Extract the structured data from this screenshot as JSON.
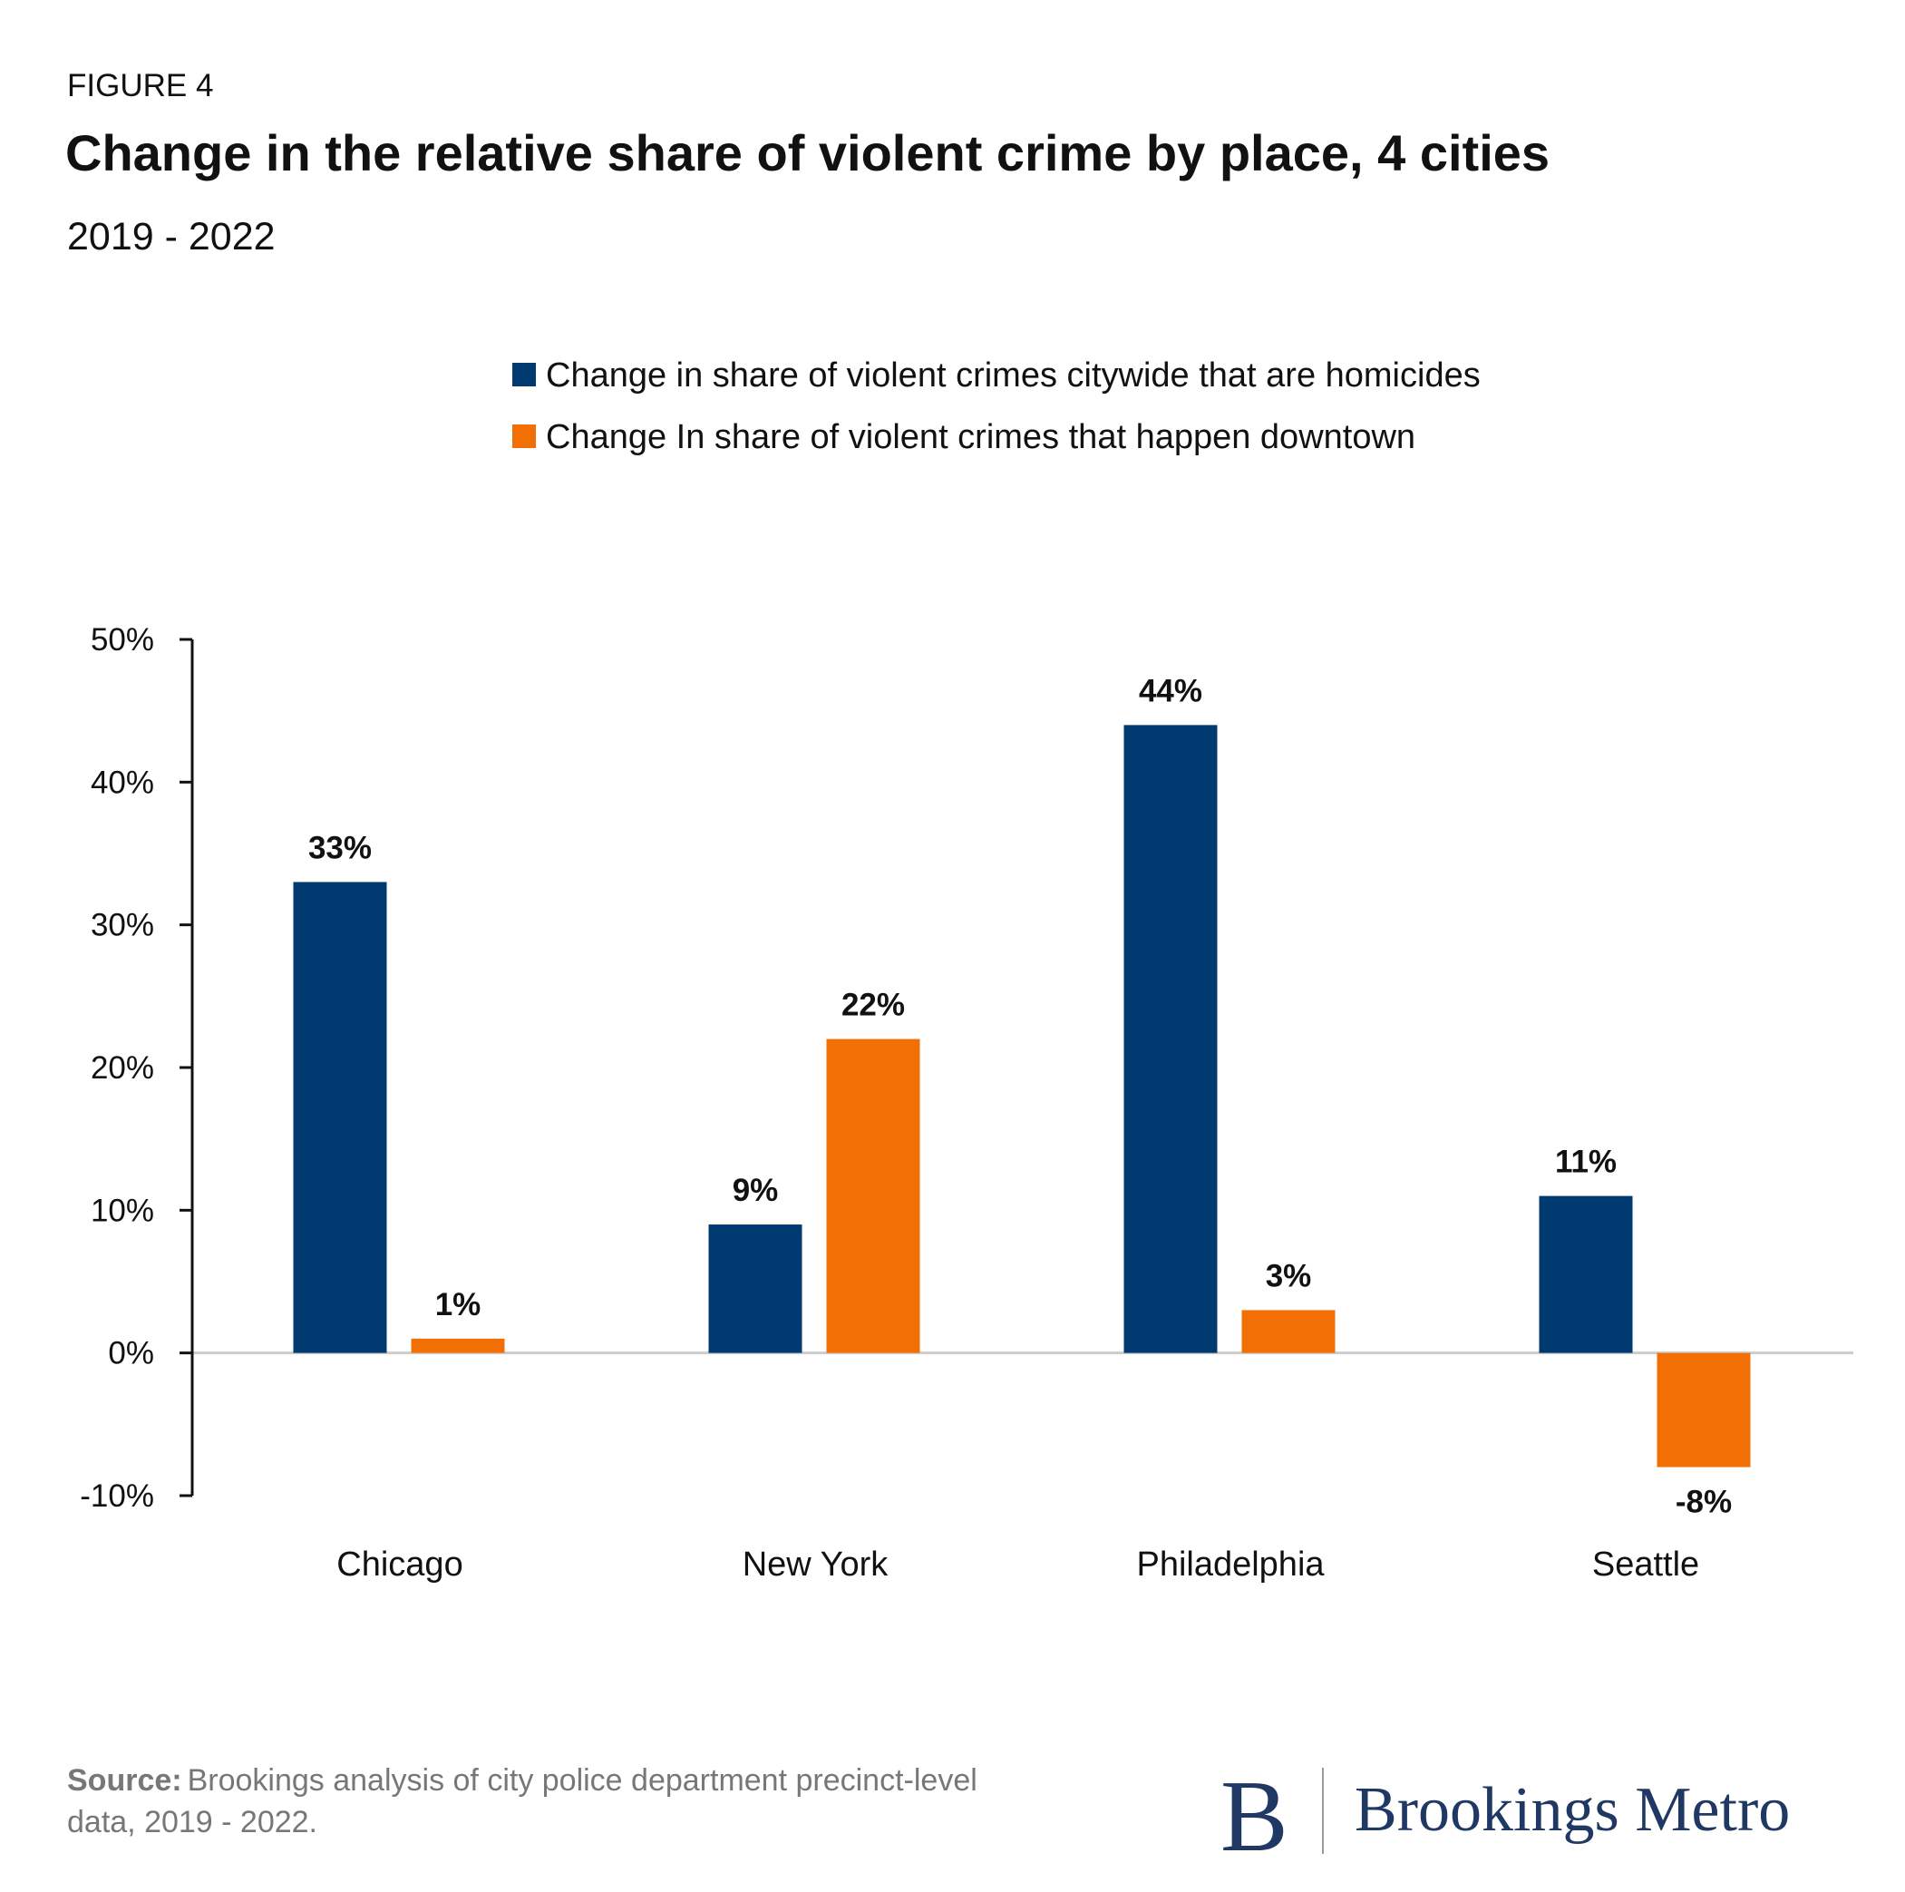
{
  "figure_label": "FIGURE 4",
  "chart_data": {
    "type": "bar",
    "title": "Change in the relative share of violent crime by place, 4 cities",
    "subtitle": "2019 - 2022",
    "categories": [
      "Chicago",
      "New York",
      "Philadelphia",
      "Seattle"
    ],
    "series": [
      {
        "name": "Change in share of violent crimes citywide that are homicides",
        "color": "#003a70",
        "values": [
          33,
          9,
          44,
          11
        ],
        "value_labels": [
          "33%",
          "9%",
          "44%",
          "11%"
        ]
      },
      {
        "name": "Change In share of violent crimes that happen downtown",
        "color": "#f26f05",
        "values": [
          1,
          22,
          3,
          -8
        ],
        "value_labels": [
          "1%",
          "22%",
          "3%",
          "-8%"
        ]
      }
    ],
    "ylim": [
      -10,
      50
    ],
    "yticks": [
      {
        "value": -10,
        "label": "-10%"
      },
      {
        "value": 0,
        "label": "0%"
      },
      {
        "value": 10,
        "label": "10%"
      },
      {
        "value": 20,
        "label": "20%"
      },
      {
        "value": 30,
        "label": "30%"
      },
      {
        "value": 40,
        "label": "40%"
      },
      {
        "value": 50,
        "label": "50%"
      }
    ]
  },
  "source": {
    "label": "Source:",
    "lines": [
      "Brookings analysis of city police department precinct-level",
      "data, 2019 - 2022."
    ]
  },
  "logo": {
    "mark": "B",
    "text": "Brookings Metro"
  }
}
